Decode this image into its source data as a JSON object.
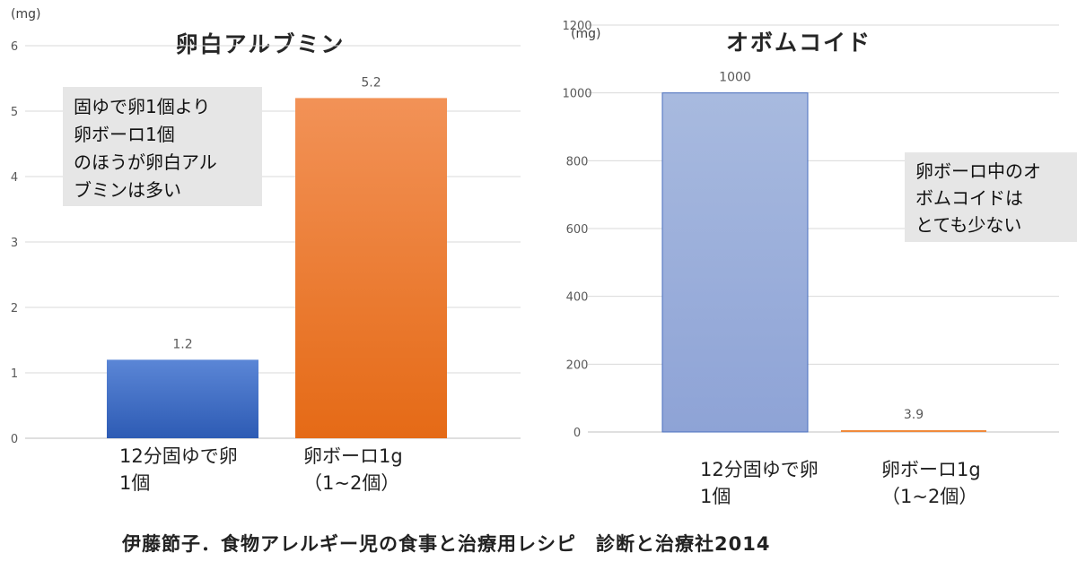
{
  "chart_data": [
    {
      "type": "bar",
      "title": "卵白アルブミン",
      "unit": "(mg)",
      "categories": [
        [
          "12分固ゆで卵",
          "1個"
        ],
        [
          "卵ボーロ1g",
          "（1~2個）"
        ]
      ],
      "values": [
        1.2,
        5.2
      ],
      "data_labels": [
        "1.2",
        "5.2"
      ],
      "ylim": [
        0,
        6
      ],
      "yticks": [
        0,
        1,
        2,
        3,
        4,
        5,
        6
      ],
      "bar_colors": [
        "#3f6fc8",
        "#f08a3c"
      ],
      "grid": true,
      "annotation": [
        "固ゆで卵1個より",
        "卵ボーロ1個",
        "のほうが卵白アル",
        "ブミンは多い"
      ]
    },
    {
      "type": "bar",
      "title": "オボムコイド",
      "unit": "(mg)",
      "categories": [
        [
          "12分固ゆで卵",
          "1個"
        ],
        [
          "卵ボーロ1g",
          "（1~2個）"
        ]
      ],
      "values": [
        1000,
        3.9
      ],
      "data_labels": [
        "1000",
        "3.9"
      ],
      "ylim": [
        0,
        1200
      ],
      "yticks": [
        0,
        200,
        400,
        600,
        800,
        1000,
        1200
      ],
      "bar_colors": [
        "#97abdc",
        "#f08a3c"
      ],
      "grid": true,
      "annotation": [
        "卵ボーロ中のオ",
        "ボムコイドは",
        "とても少ない"
      ]
    }
  ],
  "citation": "伊藤節子．食物アレルギー児の食事と治療用レシピ　診断と治療社2014"
}
